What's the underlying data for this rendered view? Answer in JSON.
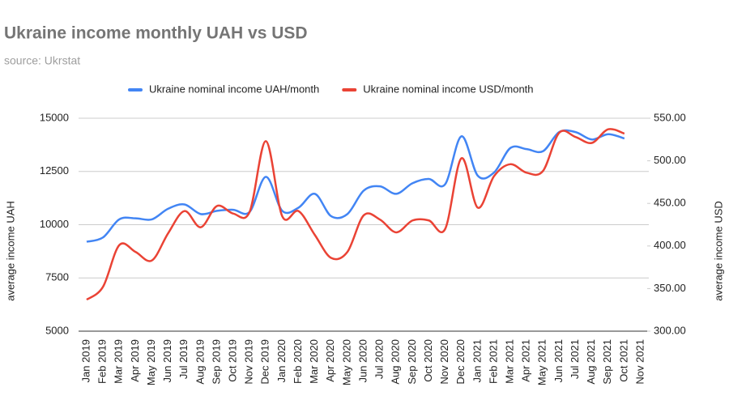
{
  "chart_data": {
    "type": "line",
    "title": "Ukraine income monthly UAH vs USD",
    "subtitle": "source: Ukrstat",
    "y_label": "average income UAH",
    "y2_label": "average income USD",
    "categories": [
      "Jan 2019",
      "Feb 2019",
      "Mar 2019",
      "Apr 2019",
      "May 2019",
      "Jun 2019",
      "Jul 2019",
      "Aug 2019",
      "Sep 2019",
      "Oct 2019",
      "Nov 2019",
      "Dec 2019",
      "Jan 2020",
      "Feb 2020",
      "Mar 2020",
      "Apr 2020",
      "May 2020",
      "Jun 2020",
      "Jul 2020",
      "Aug 2020",
      "Sep 2020",
      "Oct 2020",
      "Nov 2020",
      "Dec 2020",
      "Jan 2021",
      "Feb 2021",
      "Mar 2021",
      "Apr 2021",
      "May 2021",
      "Jun 2021",
      "Jul 2021",
      "Aug 2021",
      "Sep 2021",
      "Oct 2021",
      "Nov 2021"
    ],
    "series": [
      {
        "name": "Ukraine nominal income UAH/month",
        "color": "#4285f4",
        "axis": "y",
        "values": [
          9200,
          9400,
          10250,
          10300,
          10250,
          10750,
          10950,
          10500,
          10650,
          10700,
          10600,
          12250,
          10650,
          10800,
          11450,
          10400,
          10500,
          11600,
          11800,
          11450,
          11950,
          12150,
          11900,
          14150,
          12300,
          12450,
          13600,
          13550,
          13450,
          14350,
          14350,
          14000,
          14250,
          14050,
          null
        ]
      },
      {
        "name": "Ukraine nominal income USD/month",
        "color": "#ea4335",
        "axis": "y2",
        "values": [
          337,
          352,
          401,
          393,
          383,
          415,
          441,
          422,
          447,
          438,
          440,
          523,
          435,
          441,
          413,
          386,
          393,
          436,
          431,
          416,
          430,
          430,
          420,
          503,
          445,
          482,
          496,
          486,
          488,
          533,
          528,
          521,
          537,
          532,
          null
        ]
      }
    ],
    "ylim": [
      5000,
      15000
    ],
    "yticks": [
      5000,
      7500,
      10000,
      12500,
      15000
    ],
    "y2lim": [
      300,
      550
    ],
    "y2ticks": [
      {
        "value": 300,
        "label": "300.00"
      },
      {
        "value": 350,
        "label": "350.00"
      },
      {
        "value": 400,
        "label": "400.00"
      },
      {
        "value": 450,
        "label": "450.00"
      },
      {
        "value": 500,
        "label": "500.00"
      },
      {
        "value": 550,
        "label": "550.00"
      }
    ],
    "grid": true,
    "legend": "top"
  }
}
